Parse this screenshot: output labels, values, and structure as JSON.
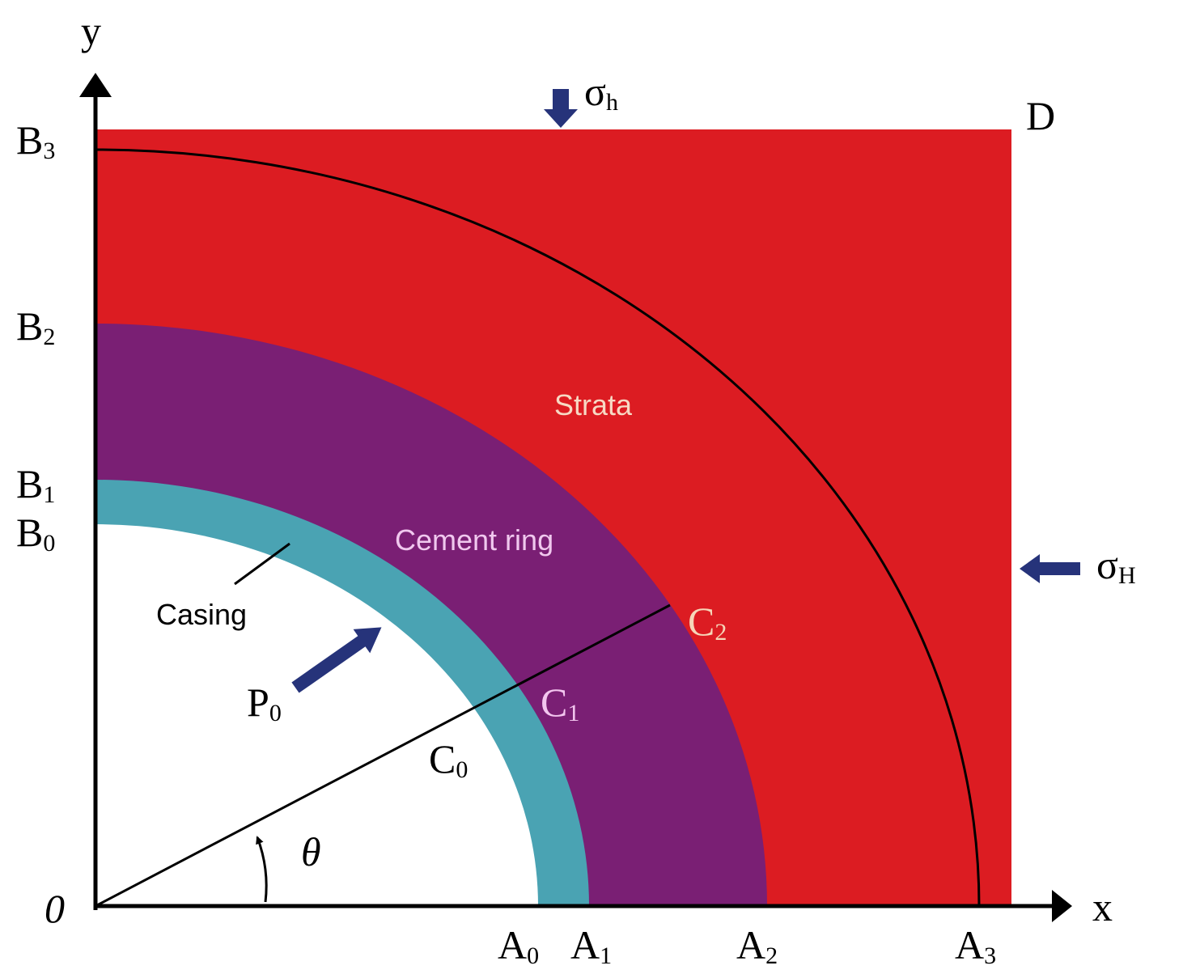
{
  "axes": {
    "x": "x",
    "y": "y",
    "origin": "0"
  },
  "labels": {
    "B3": {
      "text": "B",
      "sub": "3"
    },
    "B2": {
      "text": "B",
      "sub": "2"
    },
    "B1": {
      "text": "B",
      "sub": "1"
    },
    "B0": {
      "text": "B",
      "sub": "0"
    },
    "A0": {
      "text": "A",
      "sub": "0"
    },
    "A1": {
      "text": "A",
      "sub": "1"
    },
    "A2": {
      "text": "A",
      "sub": "2"
    },
    "A3": {
      "text": "A",
      "sub": "3"
    },
    "C0": {
      "text": "C",
      "sub": "0"
    },
    "C1": {
      "text": "C",
      "sub": "1"
    },
    "C2": {
      "text": "C",
      "sub": "2"
    },
    "P0": {
      "text": "P",
      "sub": "0"
    },
    "sigma_h": {
      "text": "σ",
      "sub": "h"
    },
    "sigma_H": {
      "text": "σ",
      "sub": "H"
    },
    "D": "D",
    "theta": "θ"
  },
  "regions": {
    "strata": "Strata",
    "cement": "Cement ring",
    "casing": "Casing"
  }
}
